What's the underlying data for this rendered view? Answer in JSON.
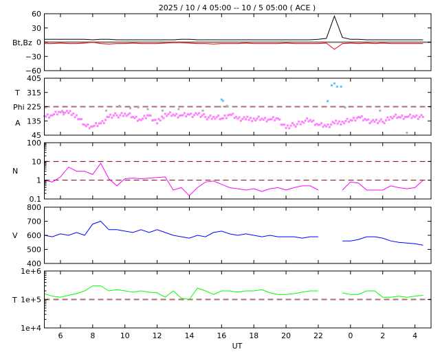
{
  "chart_data": [
    {
      "type": "line",
      "title": "2025 / 10 /  4   05:00 -- 10 /  5   05:00 ( ACE )",
      "xlabel": "UT",
      "x_tick_labels": [
        "6",
        "8",
        "10",
        "12",
        "14",
        "16",
        "18",
        "20",
        "22",
        "0",
        "2",
        "4"
      ],
      "time": [
        "10/4 05:00",
        "10/4 05:30",
        "10/4 06:00",
        "10/4 06:30",
        "10/4 07:00",
        "10/4 07:30",
        "10/4 08:00",
        "10/4 08:30",
        "10/4 09:00",
        "10/4 09:30",
        "10/4 10:00",
        "10/4 10:30",
        "10/4 11:00",
        "10/4 11:30",
        "10/4 12:00",
        "10/4 12:30",
        "10/4 13:00",
        "10/4 13:30",
        "10/4 14:00",
        "10/4 14:30",
        "10/4 15:00",
        "10/4 15:30",
        "10/4 16:00",
        "10/4 16:30",
        "10/4 17:00",
        "10/4 17:30",
        "10/4 18:00",
        "10/4 18:30",
        "10/4 19:00",
        "10/4 19:30",
        "10/4 20:00",
        "10/4 20:30",
        "10/4 21:00",
        "10/4 21:30",
        "10/4 22:00",
        "10/4 22:30",
        "10/4 23:00",
        "10/4 23:30",
        "10/5 00:00",
        "10/5 00:30",
        "10/5 01:00",
        "10/5 01:30",
        "10/5 02:00",
        "10/5 02:30",
        "10/5 03:00",
        "10/5 03:30",
        "10/5 04:00",
        "10/5 04:30",
        "10/5 05:00"
      ],
      "panels": [
        {
          "ylabel": [
            "Bt,Bz"
          ],
          "scale": "linear",
          "ylim": [
            -60,
            60
          ],
          "yticks": [
            {
              "v": 60,
              "label": "60"
            },
            {
              "v": 30,
              "label": "30"
            },
            {
              "v": 0,
              "label": "0"
            },
            {
              "v": -30,
              "label": "−30"
            },
            {
              "v": -60,
              "label": "−60"
            }
          ],
          "ref_lines": [
            0
          ],
          "series": [
            {
              "key": "Bt",
              "color": "#000000",
              "values": [
                6,
                6,
                6,
                6,
                6,
                6,
                5,
                6,
                6,
                5,
                5,
                5,
                5,
                5,
                5,
                5,
                5,
                6,
                6,
                5,
                5,
                5,
                5,
                5,
                5,
                5,
                5,
                5,
                5,
                5,
                5,
                5,
                5,
                5,
                6,
                8,
                55,
                10,
                6,
                6,
                5,
                5,
                5,
                5,
                5,
                5,
                5,
                5,
                null
              ]
            },
            {
              "key": "Bz",
              "color": "#ff0000",
              "values": [
                -3,
                -3,
                -2,
                -3,
                -3,
                -2,
                0,
                -3,
                -4,
                -3,
                -3,
                -2,
                -3,
                -3,
                -3,
                -2,
                -1,
                -1,
                -2,
                -3,
                -3,
                -4,
                -3,
                -3,
                -3,
                -2,
                -3,
                -3,
                -3,
                -3,
                -2,
                -3,
                -3,
                -3,
                -3,
                -2,
                -15,
                -3,
                -2,
                -3,
                -2,
                -3,
                -2,
                -3,
                -3,
                -3,
                -3,
                -3,
                null
              ]
            }
          ]
        },
        {
          "ylabel": [
            "T",
            "Phi",
            "A"
          ],
          "scale": "linear",
          "ylim": [
            45,
            405
          ],
          "yticks": [
            {
              "v": 405,
              "label": "405"
            },
            {
              "v": 315,
              "label": "315"
            },
            {
              "v": 225,
              "label": "225"
            },
            {
              "v": 135,
              "label": "135"
            },
            {
              "v": 45,
              "label": "45"
            }
          ],
          "ref_lines": [
            225
          ],
          "series": [
            {
              "key": "Phi",
              "color": "#ff80ff",
              "mode": "points",
              "values": [
                165,
                170,
                190,
                185,
                170,
                110,
                100,
                120,
                160,
                170,
                180,
                160,
                140,
                170,
                120,
                180,
                175,
                170,
                175,
                175,
                160,
                160,
                150,
                175,
                150,
                145,
                150,
                150,
                145,
                150,
                90,
                110,
                130,
                140,
                110,
                100,
                120,
                130,
                140,
                160,
                140,
                130,
                130,
                160,
                160,
                160,
                160,
                160,
                null
              ]
            },
            {
              "key": "Phi-gray",
              "color": "#b0b0b0",
              "mode": "points",
              "points": [
                [
                  "10/4 05:05",
                  220
                ],
                [
                  "10/4 06:10",
                  190
                ],
                [
                  "10/4 08:50",
                  200
                ],
                [
                  "10/4 09:40",
                  230
                ],
                [
                  "10/4 10:20",
                  215
                ],
                [
                  "10/4 10:50",
                  220
                ],
                [
                  "10/4 11:25",
                  210
                ],
                [
                  "10/4 12:20",
                  200
                ],
                [
                  "10/4 13:20",
                  210
                ],
                [
                  "10/4 14:50",
                  200
                ],
                [
                  "10/4 15:55",
                  225
                ],
                [
                  "10/4 16:20",
                  230
                ],
                [
                  "10/4 23:20",
                  45
                ],
                [
                  "10/4 23:40",
                  220
                ],
                [
                  "10/5 01:50",
                  200
                ],
                [
                  "10/5 03:30",
                  60
                ]
              ]
            },
            {
              "key": "Phi-blue",
              "color": "#60c0ff",
              "mode": "points",
              "points": [
                [
                  "10/4 16:00",
                  270
                ],
                [
                  "10/4 16:05",
                  262
                ],
                [
                  "10/4 22:35",
                  260
                ],
                [
                  "10/4 22:50",
                  360
                ],
                [
                  "10/4 23:00",
                  372
                ],
                [
                  "10/4 23:10",
                  352
                ],
                [
                  "10/4 23:25",
                  352
                ]
              ]
            }
          ]
        },
        {
          "ylabel": [
            "N"
          ],
          "scale": "log",
          "ylim": [
            0.1,
            100
          ],
          "yticks": [
            {
              "v": 100,
              "label": "100"
            },
            {
              "v": 10,
              "label": "10"
            },
            {
              "v": 1,
              "label": "1"
            },
            {
              "v": 0.1,
              "label": "0.1"
            }
          ],
          "ref_lines": [
            10,
            1
          ],
          "series": [
            {
              "key": "N",
              "color": "#ff00ff",
              "values": [
                1,
                0.8,
                1.5,
                5,
                3,
                3,
                2,
                8,
                1.2,
                0.5,
                1.2,
                1.3,
                1.2,
                1.3,
                1.4,
                1.5,
                0.3,
                0.4,
                0.15,
                0.4,
                0.8,
                0.9,
                0.6,
                0.4,
                0.35,
                0.3,
                0.35,
                0.25,
                0.35,
                0.4,
                0.3,
                0.4,
                0.5,
                0.5,
                0.3,
                null,
                null,
                0.3,
                0.8,
                0.7,
                0.3,
                0.3,
                0.3,
                0.5,
                0.4,
                0.35,
                0.4,
                1,
                null
              ]
            }
          ]
        },
        {
          "ylabel": [
            "V"
          ],
          "scale": "linear",
          "ylim": [
            400,
            800
          ],
          "yticks": [
            {
              "v": 800,
              "label": "800"
            },
            {
              "v": 700,
              "label": "700"
            },
            {
              "v": 600,
              "label": "600"
            },
            {
              "v": 500,
              "label": "500"
            },
            {
              "v": 400,
              "label": "400"
            }
          ],
          "ref_lines": [],
          "series": [
            {
              "key": "V",
              "color": "#0000ff",
              "values": [
                600,
                590,
                610,
                600,
                620,
                600,
                680,
                700,
                640,
                640,
                630,
                620,
                640,
                620,
                640,
                620,
                600,
                590,
                580,
                600,
                590,
                620,
                630,
                610,
                600,
                610,
                600,
                590,
                600,
                590,
                590,
                590,
                580,
                590,
                590,
                null,
                null,
                560,
                560,
                570,
                590,
                590,
                580,
                560,
                550,
                545,
                540,
                530,
                null
              ]
            }
          ]
        },
        {
          "ylabel": [
            "T"
          ],
          "scale": "log",
          "ylim": [
            10000,
            1000000
          ],
          "yticks": [
            {
              "v": 1000000,
              "label": "1e+6"
            },
            {
              "v": 100000,
              "label": "1e+5"
            },
            {
              "v": 10000,
              "label": "1e+4"
            }
          ],
          "ref_lines": [
            100000
          ],
          "series": [
            {
              "key": "T",
              "color": "#00ff00",
              "values": [
                160000,
                130000,
                120000,
                140000,
                160000,
                200000,
                300000,
                300000,
                200000,
                220000,
                200000,
                180000,
                200000,
                180000,
                170000,
                120000,
                200000,
                110000,
                100000,
                250000,
                200000,
                150000,
                200000,
                200000,
                180000,
                200000,
                200000,
                220000,
                170000,
                150000,
                150000,
                160000,
                180000,
                200000,
                200000,
                null,
                null,
                170000,
                150000,
                150000,
                200000,
                200000,
                120000,
                120000,
                130000,
                120000,
                130000,
                140000,
                null
              ]
            }
          ]
        }
      ],
      "colors": {
        "ref_line": "#b06a6a",
        "ref_line_dark": "#800000"
      }
    }
  ]
}
